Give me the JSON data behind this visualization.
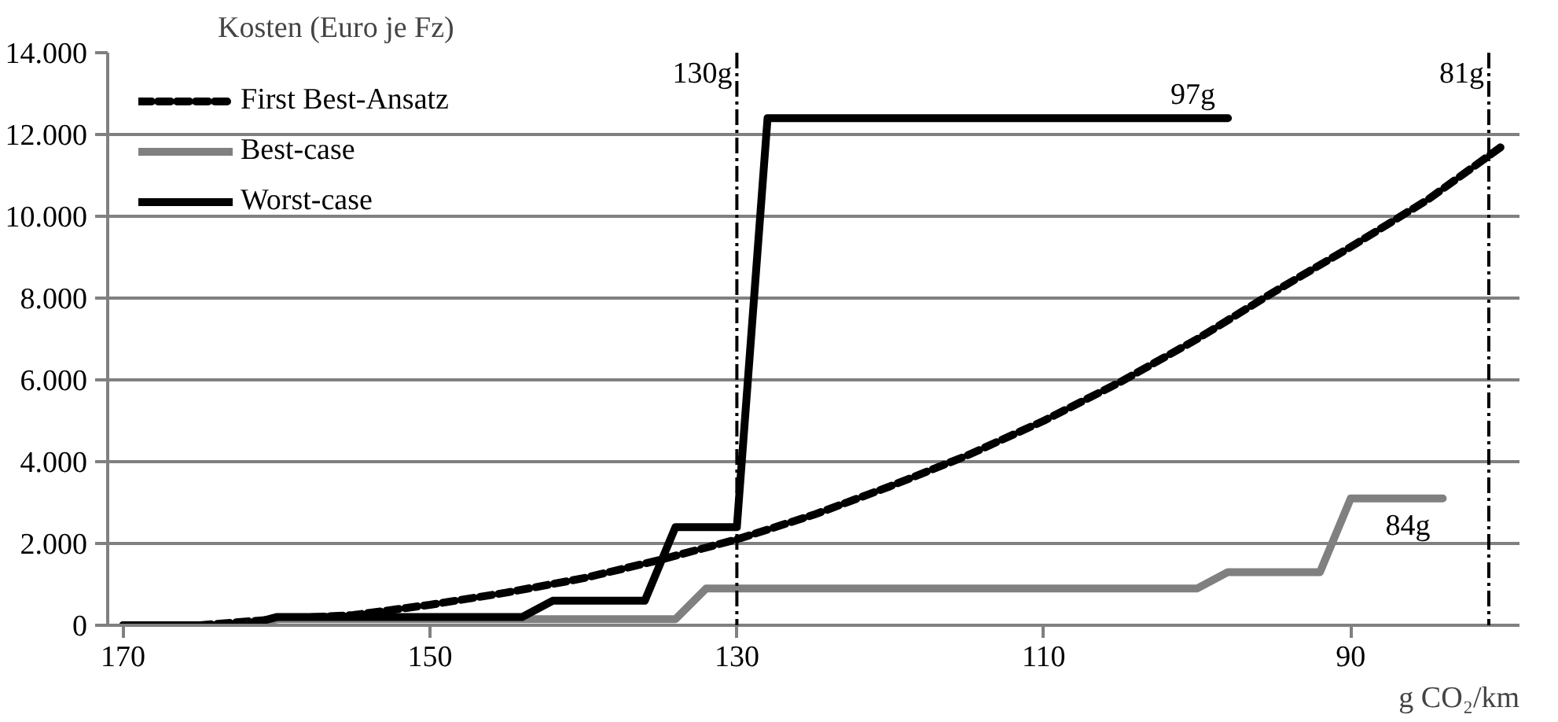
{
  "chart_data": {
    "type": "line",
    "xlabel": "g CO₂/km",
    "ylabel": "Kosten (Euro je Fz)",
    "xlim": [
      171,
      79
    ],
    "xticks": [
      170,
      150,
      130,
      110,
      90
    ],
    "ylim": [
      0,
      14000
    ],
    "yticks": [
      {
        "value": 0,
        "label": "0"
      },
      {
        "value": 2000,
        "label": "2.000"
      },
      {
        "value": 4000,
        "label": "4.000"
      },
      {
        "value": 6000,
        "label": "6.000"
      },
      {
        "value": 8000,
        "label": "8.000"
      },
      {
        "value": 10000,
        "label": "10.000"
      },
      {
        "value": 12000,
        "label": "12.000"
      },
      {
        "value": 14000,
        "label": "14.000"
      }
    ],
    "grid": "y",
    "legend": "top left",
    "series": [
      {
        "name": "First Best-Ansatz",
        "color": "#000000",
        "line_style": "dashed",
        "x": [
          170,
          165,
          160,
          155,
          150,
          145,
          140,
          135,
          130,
          125,
          120,
          115,
          110,
          105,
          100,
          95,
          90,
          85,
          80
        ],
        "values": [
          0,
          0,
          150,
          250,
          500,
          800,
          1150,
          1600,
          2100,
          2700,
          3400,
          4150,
          5000,
          5950,
          7000,
          8150,
          9250,
          10400,
          11750
        ]
      },
      {
        "name": "Best-case",
        "color": "#808080",
        "line_style": "solid",
        "x": [
          170,
          162,
          160,
          134,
          132,
          100,
          98,
          92,
          90,
          84
        ],
        "values": [
          0,
          0,
          150,
          150,
          900,
          900,
          1300,
          1300,
          3100,
          3100
        ]
      },
      {
        "name": "Worst-case",
        "color": "#000000",
        "line_style": "solid",
        "x": [
          170,
          162,
          160,
          144,
          142,
          136,
          134,
          130,
          128,
          98
        ],
        "values": [
          0,
          0,
          200,
          200,
          600,
          600,
          2400,
          2400,
          12400,
          12400
        ]
      }
    ],
    "ref_lines": [
      {
        "axis": "x",
        "value": 130,
        "label": "130g",
        "color": "#000000",
        "line_style": "dashdot"
      },
      {
        "axis": "x",
        "value": 81,
        "label": "81g",
        "color": "#000000",
        "line_style": "dashdot"
      }
    ],
    "annotations": [
      {
        "text": "97g",
        "x": 98,
        "y": 12400
      },
      {
        "text": "84g",
        "x": 84,
        "y": 3100
      }
    ]
  }
}
